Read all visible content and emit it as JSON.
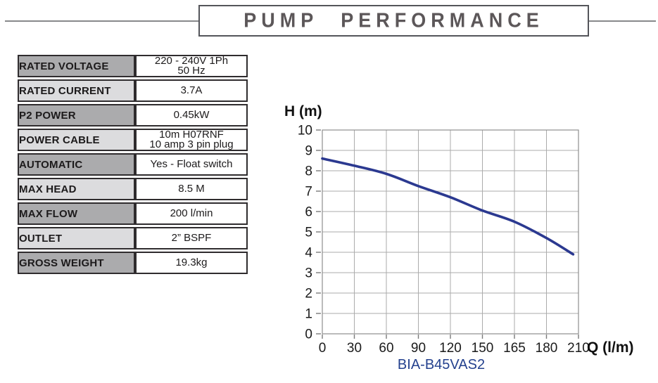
{
  "header": {
    "title": "PUMP PERFORMANCE"
  },
  "spec_table": {
    "rows": [
      {
        "label": "RATED VOLTAGE",
        "value": "220 - 240V 1Ph\n50 Hz"
      },
      {
        "label": "RATED CURRENT",
        "value": "3.7A"
      },
      {
        "label": "P2 POWER",
        "value": "0.45kW"
      },
      {
        "label": "POWER CABLE",
        "value": "10m H07RNF\n10 amp 3 pin plug"
      },
      {
        "label": "AUTOMATIC",
        "value": "Yes - Float switch"
      },
      {
        "label": "MAX HEAD",
        "value": "8.5 M"
      },
      {
        "label": "MAX FLOW",
        "value": "200 l/min"
      },
      {
        "label": "OUTLET",
        "value": "2” BSPF"
      },
      {
        "label": "GROSS WEIGHT",
        "value": "19.3kg"
      }
    ]
  },
  "chart_data": {
    "type": "line",
    "title": "",
    "xlabel": "Q (l/m)",
    "ylabel": "H (m)",
    "x_tick_labels": [
      "0",
      "30",
      "60",
      "90",
      "120",
      "150",
      "165",
      "180",
      "210"
    ],
    "x_axis_note": "tick labels evenly spaced even though values are non-linear",
    "ylim": [
      0,
      10
    ],
    "y_tick_step": 1,
    "grid": "on",
    "legend": "none",
    "series": [
      {
        "name": "BIA-B45VAS2",
        "color": "#2b3990",
        "points_q_h": [
          [
            0,
            8.6
          ],
          [
            30,
            8.25
          ],
          [
            60,
            7.85
          ],
          [
            90,
            7.25
          ],
          [
            120,
            6.7
          ],
          [
            150,
            6.05
          ],
          [
            165,
            5.5
          ],
          [
            180,
            4.7
          ],
          [
            205,
            3.9
          ]
        ]
      }
    ],
    "caption": "BIA-B45VAS2"
  },
  "colors": {
    "curve_blue": "#2b3990",
    "caption_blue": "#24418e",
    "grid_gray": "#ababab",
    "table_label_dark": "#ababad",
    "table_label_light": "#dcdcde",
    "title_gray": "#5c5759"
  }
}
